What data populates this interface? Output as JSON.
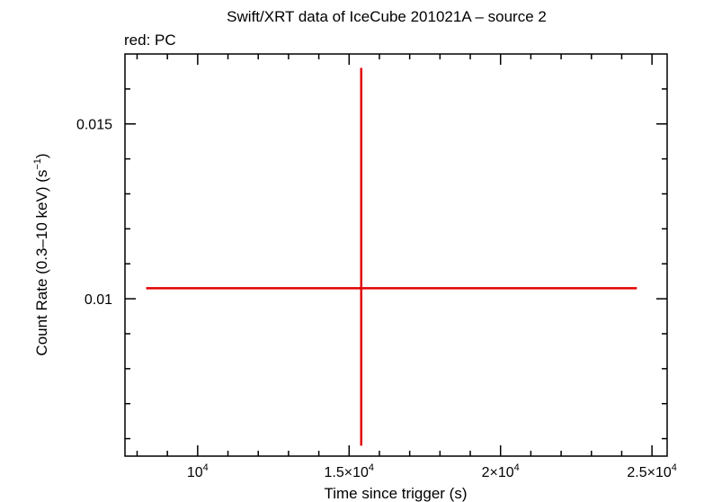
{
  "chart_data": {
    "type": "scatter",
    "title": "Swift/XRT data of IceCube 201021A – source 2",
    "subtitle": "red: PC",
    "xlabel": "Time since trigger (s)",
    "ylabel": "Count Rate (0.3–10 keV) (s",
    "ylabel_sup": "−1",
    "ylabel_suffix": ")",
    "xlim": [
      7600,
      25500
    ],
    "ylim": [
      0.0055,
      0.017
    ],
    "x_ticks": [
      {
        "value": 10000,
        "mant": "10",
        "exp": "4"
      },
      {
        "value": 15000,
        "mant": "1.5×10",
        "exp": "4"
      },
      {
        "value": 20000,
        "mant": "2×10",
        "exp": "4"
      },
      {
        "value": 25000,
        "mant": "2.5×10",
        "exp": "4"
      }
    ],
    "y_ticks": [
      {
        "value": 0.01,
        "label": "0.01"
      },
      {
        "value": 0.015,
        "label": "0.015"
      }
    ],
    "series": [
      {
        "color": "#e00000",
        "points": [
          {
            "x": 15400,
            "y": 0.0103,
            "xerr_low": 7100,
            "xerr_high": 9100,
            "yerr_low": 0.0045,
            "yerr_high": 0.0063
          }
        ]
      }
    ]
  }
}
